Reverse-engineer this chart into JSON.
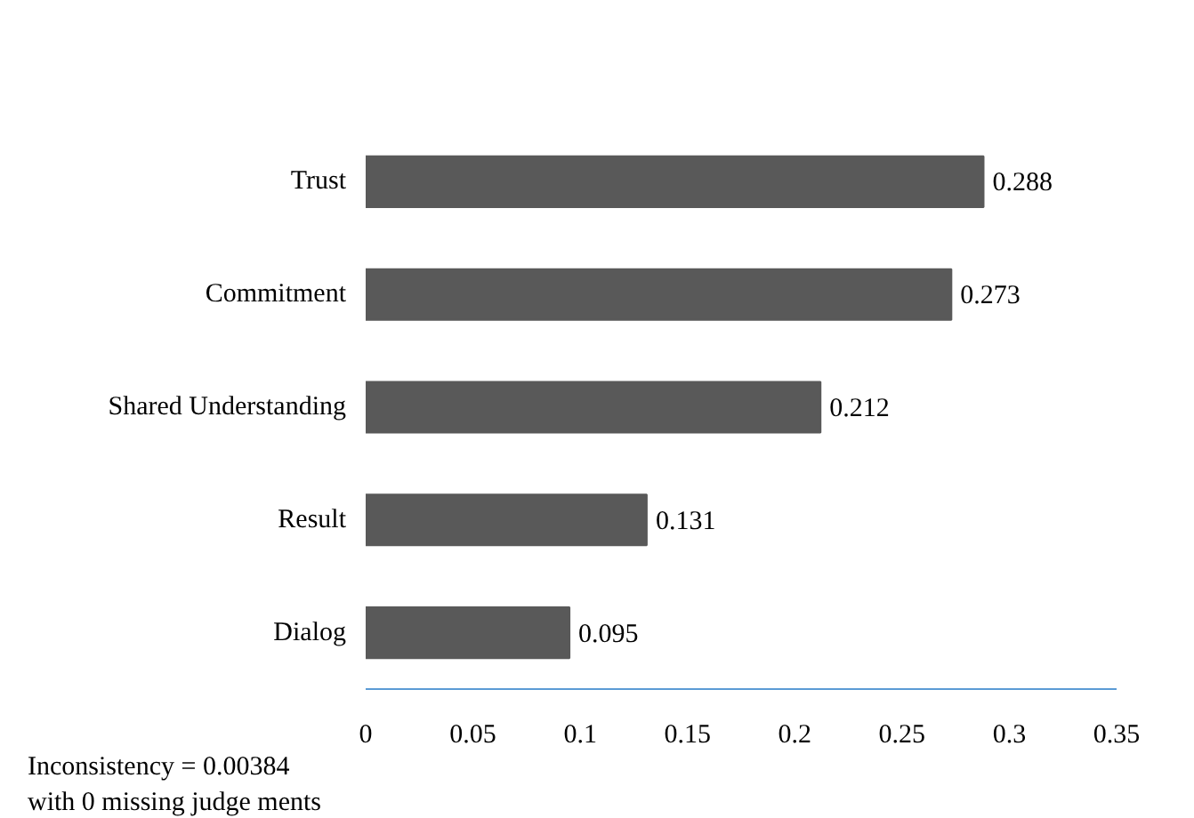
{
  "chart_data": {
    "type": "bar",
    "orientation": "horizontal",
    "categories": [
      "Trust",
      "Commitment",
      "Shared Understanding",
      "Result",
      "Dialog"
    ],
    "values": [
      0.288,
      0.273,
      0.212,
      0.131,
      0.095
    ],
    "color": "#595959",
    "xlim": [
      0,
      0.35
    ],
    "xticks": [
      0,
      0.05,
      0.1,
      0.15,
      0.2,
      0.25,
      0.3,
      0.35
    ],
    "data_labels": true,
    "grid": false,
    "annotations": [
      "Inconsistency = 0.00384",
      "with 0 missing judge ments"
    ]
  }
}
